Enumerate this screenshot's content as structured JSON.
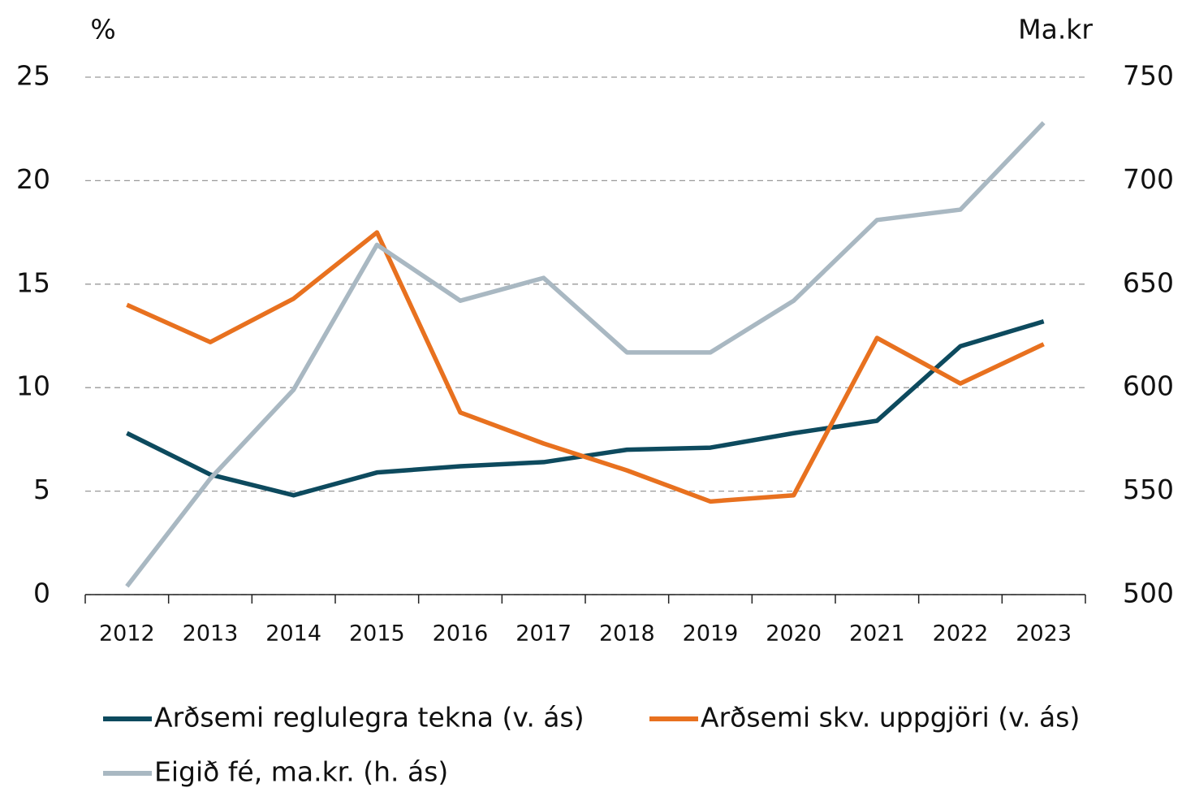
{
  "chart_data": {
    "type": "line",
    "ylabel": "%",
    "y2label": "Ma.kr",
    "categories": [
      "2012",
      "2013",
      "2014",
      "2015",
      "2016",
      "2017",
      "2018",
      "2019",
      "2020",
      "2021",
      "2022",
      "2023"
    ],
    "series": [
      {
        "name": "Arðsemi reglulegra tekna (v. ás)",
        "color": "#0d4a5e",
        "values": [
          7.8,
          5.8,
          4.8,
          5.9,
          6.2,
          6.4,
          7.0,
          7.1,
          7.8,
          8.4,
          12.0,
          13.2
        ]
      },
      {
        "name": "Arðsemi skv. uppgjöri (v. ás)",
        "color": "#e8711f",
        "values": [
          14.0,
          12.2,
          14.3,
          17.5,
          8.8,
          7.3,
          6.0,
          4.5,
          4.8,
          12.4,
          10.2,
          12.1
        ]
      },
      {
        "name": "Eigið fé, ma.kr. (h. ás)",
        "color": "#a9b8c2",
        "axis": "y2",
        "values": [
          504,
          556,
          599,
          669,
          642,
          653,
          617,
          617,
          642,
          681,
          686,
          728
        ]
      }
    ],
    "ylim": [
      0,
      25
    ],
    "yticks": [
      0,
      5,
      10,
      15,
      20,
      25
    ],
    "y2lim": [
      500,
      750
    ],
    "y2ticks": [
      500,
      550,
      600,
      650,
      700,
      750
    ],
    "grid": true
  }
}
